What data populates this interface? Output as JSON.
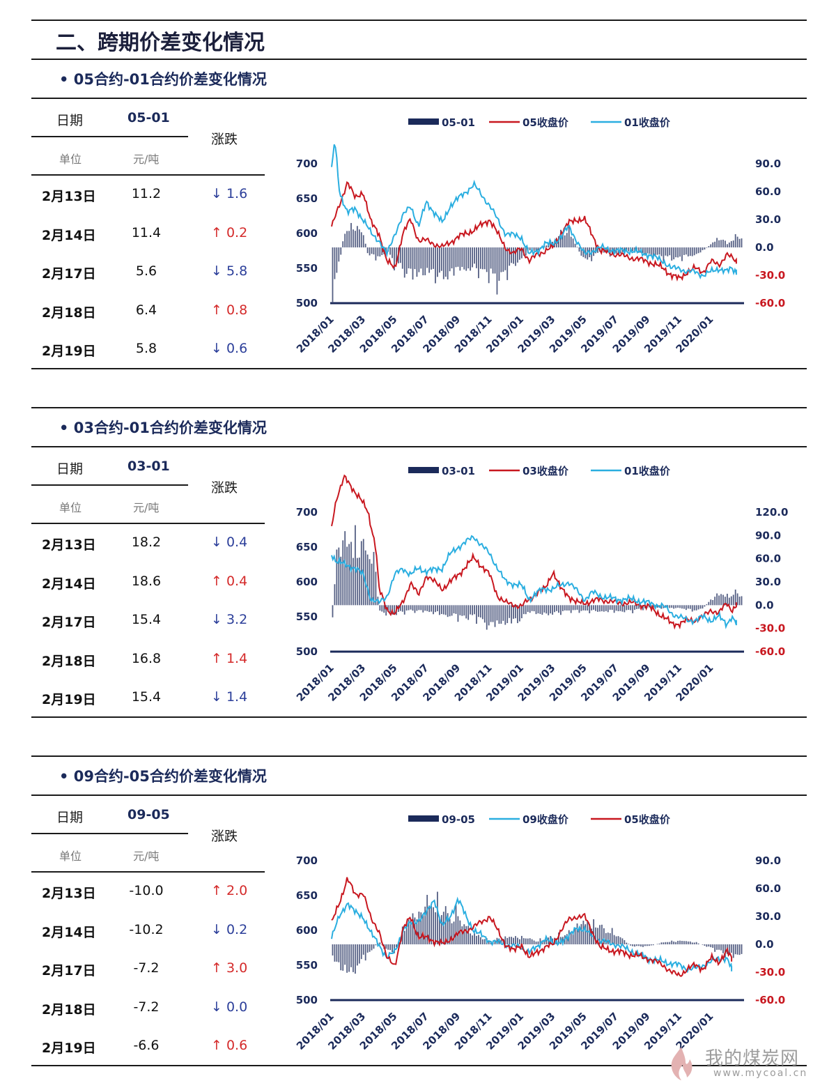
{
  "page": {
    "title": "二、跨期价差变化情况"
  },
  "colors": {
    "bar": "#1b2a5a",
    "red": "#c8171f",
    "cyan": "#2aaee0",
    "up": "#d42a2a",
    "down": "#2c3f9a"
  },
  "common": {
    "date_label": "日期",
    "unit_label": "单位",
    "unit_value": "元/吨",
    "change_label": "涨跌",
    "up_icon": "↑",
    "down_icon": "↓"
  },
  "watermark": {
    "text": "我的煤炭网",
    "url": "www.mycoal.cn"
  },
  "sections": [
    {
      "title": "• 05合约-01合约价差变化情况",
      "code": "05-01",
      "rows": [
        {
          "date": "2月13日",
          "value": "11.2",
          "dir": "down",
          "change": "1.6"
        },
        {
          "date": "2月14日",
          "value": "11.4",
          "dir": "up",
          "change": "0.2"
        },
        {
          "date": "2月17日",
          "value": "5.6",
          "dir": "down",
          "change": "5.8"
        },
        {
          "date": "2月18日",
          "value": "6.4",
          "dir": "up",
          "change": "0.8"
        },
        {
          "date": "2月19日",
          "value": "5.8",
          "dir": "down",
          "change": "0.6"
        }
      ]
    },
    {
      "title": "• 03合约-01合约价差变化情况",
      "code": "03-01",
      "rows": [
        {
          "date": "2月13日",
          "value": "18.2",
          "dir": "down",
          "change": "0.4"
        },
        {
          "date": "2月14日",
          "value": "18.6",
          "dir": "up",
          "change": "0.4"
        },
        {
          "date": "2月17日",
          "value": "15.4",
          "dir": "down",
          "change": "3.2"
        },
        {
          "date": "2月18日",
          "value": "16.8",
          "dir": "up",
          "change": "1.4"
        },
        {
          "date": "2月19日",
          "value": "15.4",
          "dir": "down",
          "change": "1.4"
        }
      ]
    },
    {
      "title": "• 09合约-05合约价差变化情况",
      "code": "09-05",
      "rows": [
        {
          "date": "2月13日",
          "value": "-10.0",
          "dir": "up",
          "change": "2.0"
        },
        {
          "date": "2月14日",
          "value": "-10.2",
          "dir": "down",
          "change": "0.2"
        },
        {
          "date": "2月17日",
          "value": "-7.2",
          "dir": "up",
          "change": "3.0"
        },
        {
          "date": "2月18日",
          "value": "-7.2",
          "dir": "down",
          "change": "0.0"
        },
        {
          "date": "2月19日",
          "value": "-6.6",
          "dir": "up",
          "change": "0.6"
        }
      ]
    }
  ],
  "chart_data": [
    {
      "type": "bar+line",
      "legend": [
        "05-01",
        "05收盘价",
        "01收盘价"
      ],
      "x_ticks": [
        "2018/01",
        "2018/03",
        "2018/05",
        "2018/07",
        "2018/09",
        "2018/11",
        "2019/01",
        "2019/03",
        "2019/05",
        "2019/07",
        "2019/09",
        "2019/11",
        "2020/01"
      ],
      "y_left_ticks": [
        "700",
        "650",
        "600",
        "550",
        "500"
      ],
      "y_left_range": [
        500,
        700
      ],
      "y_right_ticks": [
        "90.0",
        "60.0",
        "30.0",
        "0.0",
        "-30.0",
        "-60.0"
      ],
      "y_right_range": [
        -60,
        90
      ],
      "months": 26,
      "series": [
        {
          "name": "05-01",
          "kind": "bar",
          "axis": "right",
          "color": "#1b2a5a",
          "t": [
            0,
            0.3,
            0.8,
            1.5,
            2.0,
            2.3,
            3.0,
            3.5,
            4.0,
            5.0,
            6.0,
            7.0,
            8.0,
            9.0,
            10.0,
            10.5,
            11.0,
            12.0,
            12.5,
            13.0,
            14.0,
            14.5,
            15.0,
            16.0,
            16.5,
            17.0,
            17.5,
            18.0,
            18.5,
            19.0,
            20.0,
            21.0,
            22.0,
            23.0,
            23.5,
            24.0,
            24.3,
            24.6,
            25.0,
            25.5
          ],
          "v": [
            -60,
            -45,
            20,
            30,
            18,
            -10,
            -15,
            -5,
            -25,
            -40,
            -35,
            -45,
            -30,
            -30,
            -38,
            -50,
            -35,
            -15,
            -5,
            -5,
            10,
            20,
            25,
            -20,
            -15,
            -5,
            -10,
            -10,
            -5,
            -5,
            -10,
            -15,
            -15,
            -10,
            -5,
            5,
            10,
            15,
            5,
            15
          ]
        },
        {
          "name": "05收盘价",
          "kind": "line",
          "axis": "left",
          "color": "#c8171f",
          "t": [
            0,
            0.5,
            1.0,
            1.5,
            2.0,
            2.5,
            3.0,
            3.5,
            4.0,
            4.5,
            5.0,
            5.5,
            6.0,
            7.0,
            8.0,
            9.0,
            10.0,
            11.0,
            11.5,
            12.0,
            12.5,
            13.0,
            13.5,
            14.0,
            14.5,
            15.0,
            15.5,
            16.0,
            17.0,
            18.0,
            19.0,
            20.0,
            21.0,
            21.5,
            22.0,
            22.5,
            23.0,
            23.5,
            24.0,
            24.5,
            25.0,
            25.3,
            25.6
          ],
          "v": [
            610,
            640,
            675,
            650,
            660,
            615,
            600,
            560,
            550,
            600,
            620,
            590,
            590,
            580,
            595,
            605,
            620,
            580,
            570,
            580,
            560,
            570,
            575,
            580,
            600,
            615,
            620,
            620,
            575,
            570,
            565,
            560,
            550,
            540,
            535,
            545,
            550,
            545,
            560,
            555,
            570,
            565,
            560
          ]
        },
        {
          "name": "01收盘价",
          "kind": "line",
          "axis": "left",
          "color": "#2aaee0",
          "t": [
            0,
            0.2,
            0.5,
            1.0,
            1.5,
            2.0,
            2.5,
            3.0,
            3.5,
            4.0,
            4.5,
            5.0,
            5.5,
            6.0,
            7.0,
            7.5,
            8.0,
            9.0,
            10.0,
            10.5,
            11.0,
            12.0,
            12.5,
            13.0,
            13.5,
            14.0,
            14.5,
            15.0,
            16.0,
            16.5,
            17.0,
            18.0,
            19.0,
            20.0,
            21.0,
            21.5,
            22.0,
            22.5,
            23.0,
            23.5,
            24.0,
            24.5,
            25.0,
            25.3,
            25.6
          ],
          "v": [
            690,
            735,
            660,
            630,
            635,
            620,
            600,
            590,
            570,
            600,
            625,
            640,
            610,
            645,
            615,
            640,
            650,
            670,
            640,
            620,
            600,
            595,
            570,
            575,
            585,
            585,
            595,
            610,
            570,
            575,
            580,
            575,
            575,
            570,
            560,
            550,
            550,
            545,
            545,
            540,
            545,
            550,
            545,
            550,
            545
          ]
        }
      ]
    },
    {
      "type": "bar+line",
      "legend": [
        "03-01",
        "03收盘价",
        "01收盘价"
      ],
      "x_ticks": [
        "2018/01",
        "2018/03",
        "2018/05",
        "2018/07",
        "2018/09",
        "2018/11",
        "2019/01",
        "2019/03",
        "2019/05",
        "2019/07",
        "2019/09",
        "2019/11",
        "2020/01"
      ],
      "y_left_ticks": [
        "700",
        "650",
        "600",
        "550",
        "500"
      ],
      "y_left_range": [
        500,
        700
      ],
      "y_right_ticks": [
        "120.0",
        "90.0",
        "60.0",
        "30.0",
        "0.0",
        "-30.0",
        "-60.0"
      ],
      "y_right_range": [
        -60,
        120
      ],
      "months": 26,
      "series": [
        {
          "name": "03-01",
          "kind": "bar",
          "axis": "right",
          "color": "#1b2a5a",
          "t": [
            0,
            0.3,
            0.6,
            1.0,
            1.5,
            2.0,
            2.4,
            2.8,
            3.0,
            3.5,
            4.0,
            5.0,
            6.0,
            7.0,
            8.0,
            9.0,
            10.0,
            10.5,
            11.0,
            12.0,
            12.5,
            13.0,
            14.0,
            15.0,
            16.0,
            17.0,
            18.0,
            19.0,
            20.0,
            21.0,
            22.0,
            23.0,
            23.5,
            24.0,
            24.3,
            24.6,
            25.0,
            25.5
          ],
          "v": [
            -50,
            90,
            100,
            110,
            110,
            100,
            95,
            60,
            -10,
            -15,
            -15,
            -10,
            -10,
            -15,
            -20,
            -20,
            -35,
            -30,
            -30,
            -25,
            -10,
            -15,
            -15,
            -10,
            -10,
            -10,
            -10,
            -10,
            -5,
            -5,
            -5,
            -10,
            -5,
            10,
            15,
            20,
            15,
            20
          ]
        },
        {
          "name": "03收盘价",
          "kind": "line",
          "axis": "left",
          "color": "#c8171f",
          "t": [
            0,
            0.3,
            0.8,
            1.3,
            1.8,
            2.3,
            2.8,
            3.0,
            3.5,
            4.0,
            4.5,
            5.0,
            5.5,
            6.0,
            7.0,
            7.5,
            8.0,
            9.0,
            10.0,
            10.5,
            11.0,
            12.0,
            12.5,
            13.0,
            13.5,
            14.0,
            14.5,
            15.0,
            15.5,
            16.0,
            17.0,
            18.0,
            19.0,
            20.0,
            21.0,
            21.5,
            22.0,
            22.5,
            23.0,
            23.5,
            24.0,
            24.5,
            25.0,
            25.3,
            25.6
          ],
          "v": [
            680,
            720,
            750,
            735,
            720,
            700,
            650,
            590,
            560,
            555,
            570,
            600,
            580,
            610,
            590,
            600,
            610,
            635,
            610,
            580,
            570,
            565,
            575,
            585,
            590,
            615,
            590,
            580,
            570,
            570,
            575,
            570,
            570,
            565,
            550,
            540,
            540,
            545,
            545,
            550,
            560,
            555,
            570,
            560,
            565
          ]
        },
        {
          "name": "01收盘价",
          "kind": "line",
          "axis": "left",
          "color": "#2aaee0",
          "t": [
            0,
            0.3,
            0.8,
            1.5,
            2.0,
            2.5,
            3.0,
            3.5,
            4.0,
            4.5,
            5.0,
            5.5,
            6.0,
            7.0,
            7.5,
            8.0,
            9.0,
            10.0,
            10.5,
            11.0,
            12.0,
            12.5,
            13.0,
            13.5,
            14.0,
            14.5,
            15.0,
            16.0,
            16.5,
            17.0,
            18.0,
            19.0,
            20.0,
            21.0,
            21.5,
            22.0,
            22.5,
            23.0,
            23.5,
            24.0,
            24.5,
            25.0,
            25.3,
            25.6
          ],
          "v": [
            640,
            630,
            625,
            620,
            610,
            575,
            570,
            580,
            610,
            620,
            610,
            620,
            615,
            620,
            640,
            650,
            665,
            640,
            620,
            600,
            595,
            575,
            585,
            590,
            590,
            595,
            600,
            575,
            585,
            580,
            575,
            575,
            570,
            565,
            555,
            550,
            545,
            545,
            550,
            545,
            550,
            540,
            550,
            540
          ]
        }
      ]
    },
    {
      "type": "bar+line",
      "legend": [
        "09-05",
        "09收盘价",
        "05收盘价"
      ],
      "x_ticks": [
        "2018/01",
        "2018/03",
        "2018/05",
        "2018/07",
        "2018/09",
        "2018/11",
        "2019/01",
        "2019/03",
        "2019/05",
        "2019/07",
        "2019/09",
        "2019/11",
        "2020/01"
      ],
      "y_left_ticks": [
        "700",
        "650",
        "600",
        "550",
        "500"
      ],
      "y_left_range": [
        500,
        700
      ],
      "y_right_ticks": [
        "90.0",
        "60.0",
        "30.0",
        "0.0",
        "-30.0",
        "-60.0"
      ],
      "y_right_range": [
        -60,
        90
      ],
      "months": 26,
      "series": [
        {
          "name": "09-05",
          "kind": "bar",
          "axis": "right",
          "color": "#1b2a5a",
          "t": [
            0,
            0.5,
            1.0,
            1.5,
            2.0,
            2.5,
            3.0,
            3.5,
            4.0,
            4.5,
            5.0,
            5.5,
            6.0,
            6.5,
            7.0,
            7.5,
            8.0,
            8.5,
            9.0,
            10.0,
            11.0,
            12.0,
            13.0,
            14.0,
            15.0,
            15.5,
            16.0,
            16.5,
            17.0,
            17.5,
            18.0,
            19.0,
            20.0,
            21.0,
            22.0,
            23.0,
            24.0,
            24.5,
            25.0
          ],
          "v": [
            -20,
            -30,
            -40,
            -35,
            -20,
            -10,
            5,
            -10,
            -10,
            20,
            35,
            40,
            55,
            60,
            50,
            40,
            45,
            25,
            15,
            5,
            10,
            10,
            5,
            10,
            15,
            25,
            30,
            30,
            25,
            20,
            15,
            -3,
            -3,
            3,
            5,
            3,
            -5,
            -10,
            -15
          ]
        },
        {
          "name": "09收盘价",
          "kind": "line",
          "axis": "left",
          "color": "#2aaee0",
          "t": [
            0,
            0.5,
            1.0,
            1.5,
            2.0,
            2.5,
            3.0,
            3.5,
            4.0,
            4.5,
            5.0,
            5.5,
            6.0,
            6.5,
            7.0,
            7.5,
            8.0,
            8.5,
            9.0,
            10.0,
            11.0,
            12.0,
            12.5,
            13.0,
            13.5,
            14.0,
            14.5,
            15.0,
            15.5,
            16.0,
            17.0,
            18.0,
            19.0,
            20.0,
            21.0,
            22.0,
            22.5,
            23.0,
            23.5,
            24.0,
            24.5,
            25.0,
            25.3
          ],
          "v": [
            590,
            620,
            640,
            625,
            620,
            595,
            580,
            560,
            570,
            600,
            610,
            615,
            625,
            645,
            605,
            620,
            645,
            620,
            600,
            585,
            580,
            575,
            570,
            575,
            590,
            580,
            585,
            590,
            605,
            600,
            585,
            580,
            570,
            560,
            555,
            550,
            545,
            545,
            550,
            555,
            560,
            560,
            545
          ]
        },
        {
          "name": "05收盘价",
          "kind": "line",
          "axis": "left",
          "color": "#c8171f",
          "t": [
            0,
            0.5,
            1.0,
            1.5,
            2.0,
            2.5,
            3.0,
            3.5,
            4.0,
            4.5,
            5.0,
            5.5,
            6.0,
            7.0,
            8.0,
            9.0,
            10.0,
            11.0,
            11.5,
            12.0,
            12.5,
            13.0,
            13.5,
            14.0,
            14.5,
            15.0,
            15.5,
            16.0,
            17.0,
            18.0,
            19.0,
            20.0,
            21.0,
            21.5,
            22.0,
            22.5,
            23.0,
            23.5,
            24.0,
            24.5,
            25.0,
            25.3
          ],
          "v": [
            610,
            640,
            675,
            650,
            655,
            615,
            600,
            560,
            550,
            600,
            620,
            590,
            590,
            580,
            595,
            605,
            620,
            580,
            570,
            580,
            560,
            570,
            575,
            580,
            600,
            615,
            620,
            620,
            575,
            570,
            565,
            560,
            550,
            540,
            535,
            545,
            550,
            545,
            560,
            555,
            570,
            560
          ]
        }
      ]
    }
  ]
}
